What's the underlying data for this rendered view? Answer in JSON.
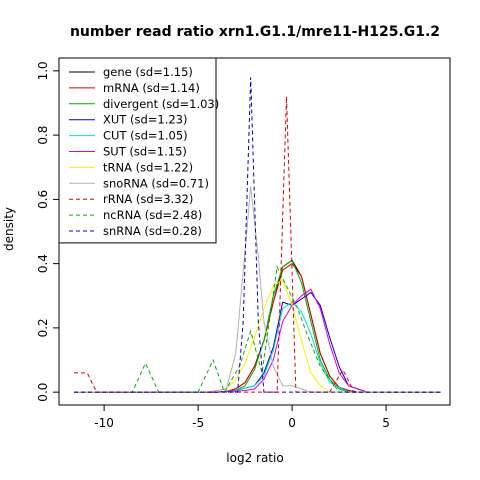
{
  "chart_data": {
    "type": "line",
    "title": "number read ratio xrn1.G1.1/mre11-H125.G1.2",
    "xlabel": "log2 ratio",
    "ylabel": "density",
    "xlim": [
      -12.4,
      8.4
    ],
    "ylim": [
      -0.04,
      1.04
    ],
    "x_ticks": [
      -10,
      -5,
      0,
      5
    ],
    "y_ticks": [
      0.0,
      0.2,
      0.4,
      0.6,
      0.8,
      1.0
    ],
    "x_tick_labels": [
      "-10",
      "-5",
      "0",
      "5"
    ],
    "y_tick_labels": [
      "0.0",
      "0.2",
      "0.4",
      "0.6",
      "0.8",
      "1.0"
    ],
    "legend_position": "top-left",
    "grid": false,
    "series": [
      {
        "name": "gene (sd=1.15)",
        "color": "#000000",
        "dash": "solid",
        "points": [
          [
            -11.6,
            0.0
          ],
          [
            -4.0,
            0.0
          ],
          [
            -3.5,
            0.002
          ],
          [
            -3.0,
            0.01
          ],
          [
            -2.5,
            0.03
          ],
          [
            -2.0,
            0.08
          ],
          [
            -1.5,
            0.16
          ],
          [
            -1.0,
            0.28
          ],
          [
            -0.5,
            0.39
          ],
          [
            0.0,
            0.41
          ],
          [
            0.5,
            0.36
          ],
          [
            1.0,
            0.24
          ],
          [
            1.5,
            0.12
          ],
          [
            2.0,
            0.05
          ],
          [
            2.5,
            0.015
          ],
          [
            3.0,
            0.005
          ],
          [
            3.5,
            0.0
          ],
          [
            7.9,
            0.0
          ]
        ]
      },
      {
        "name": "mRNA (sd=1.14)",
        "color": "#df0000",
        "dash": "solid",
        "points": [
          [
            -11.6,
            0.0
          ],
          [
            -4.0,
            0.0
          ],
          [
            -3.5,
            0.002
          ],
          [
            -3.0,
            0.01
          ],
          [
            -2.5,
            0.03
          ],
          [
            -2.0,
            0.08
          ],
          [
            -1.5,
            0.16
          ],
          [
            -1.0,
            0.28
          ],
          [
            -0.5,
            0.38
          ],
          [
            0.0,
            0.4
          ],
          [
            0.5,
            0.36
          ],
          [
            1.0,
            0.24
          ],
          [
            1.5,
            0.12
          ],
          [
            2.0,
            0.05
          ],
          [
            2.5,
            0.015
          ],
          [
            3.0,
            0.005
          ],
          [
            3.5,
            0.0
          ],
          [
            7.9,
            0.0
          ]
        ]
      },
      {
        "name": "divergent (sd=1.03)",
        "color": "#00b000",
        "dash": "solid",
        "points": [
          [
            -11.6,
            0.0
          ],
          [
            -4.0,
            0.0
          ],
          [
            -3.0,
            0.005
          ],
          [
            -2.5,
            0.02
          ],
          [
            -2.0,
            0.07
          ],
          [
            -1.5,
            0.16
          ],
          [
            -1.0,
            0.3
          ],
          [
            -0.5,
            0.39
          ],
          [
            0.0,
            0.41
          ],
          [
            0.5,
            0.34
          ],
          [
            1.0,
            0.22
          ],
          [
            1.5,
            0.1
          ],
          [
            2.0,
            0.04
          ],
          [
            2.5,
            0.01
          ],
          [
            3.0,
            0.0
          ],
          [
            7.9,
            0.0
          ]
        ]
      },
      {
        "name": "XUT (sd=1.23)",
        "color": "#0000cc",
        "dash": "solid",
        "points": [
          [
            -11.6,
            0.0
          ],
          [
            -4.0,
            0.0
          ],
          [
            -3.0,
            0.005
          ],
          [
            -2.0,
            0.02
          ],
          [
            -1.5,
            0.06
          ],
          [
            -1.0,
            0.14
          ],
          [
            -0.5,
            0.28
          ],
          [
            0.0,
            0.27
          ],
          [
            0.5,
            0.29
          ],
          [
            1.0,
            0.31
          ],
          [
            1.5,
            0.27
          ],
          [
            2.0,
            0.17
          ],
          [
            2.5,
            0.08
          ],
          [
            3.0,
            0.02
          ],
          [
            4.0,
            0.0
          ],
          [
            7.9,
            0.0
          ]
        ]
      },
      {
        "name": "CUT (sd=1.05)",
        "color": "#00dddd",
        "dash": "solid",
        "points": [
          [
            -11.6,
            0.0
          ],
          [
            -4.0,
            0.0
          ],
          [
            -3.0,
            0.005
          ],
          [
            -2.0,
            0.02
          ],
          [
            -1.5,
            0.05
          ],
          [
            -1.0,
            0.13
          ],
          [
            -0.5,
            0.26
          ],
          [
            0.0,
            0.28
          ],
          [
            0.5,
            0.25
          ],
          [
            1.0,
            0.18
          ],
          [
            1.5,
            0.09
          ],
          [
            2.0,
            0.03
          ],
          [
            3.0,
            0.0
          ],
          [
            7.9,
            0.0
          ]
        ]
      },
      {
        "name": "SUT (sd=1.15)",
        "color": "#dd00dd",
        "dash": "solid",
        "points": [
          [
            -11.6,
            0.0
          ],
          [
            -4.0,
            0.0
          ],
          [
            -2.5,
            0.005
          ],
          [
            -2.0,
            0.01
          ],
          [
            -1.5,
            0.04
          ],
          [
            -1.0,
            0.1
          ],
          [
            -0.5,
            0.22
          ],
          [
            0.0,
            0.27
          ],
          [
            0.5,
            0.3
          ],
          [
            1.0,
            0.32
          ],
          [
            1.5,
            0.26
          ],
          [
            2.0,
            0.15
          ],
          [
            2.5,
            0.06
          ],
          [
            3.0,
            0.02
          ],
          [
            4.0,
            0.0
          ],
          [
            7.9,
            0.0
          ]
        ]
      },
      {
        "name": "tRNA (sd=1.22)",
        "color": "#ffee00",
        "dash": "solid",
        "points": [
          [
            -11.6,
            0.0
          ],
          [
            -4.5,
            0.0
          ],
          [
            -3.5,
            0.01
          ],
          [
            -3.0,
            0.04
          ],
          [
            -2.5,
            0.09
          ],
          [
            -2.0,
            0.17
          ],
          [
            -1.5,
            0.26
          ],
          [
            -1.0,
            0.33
          ],
          [
            -0.5,
            0.35
          ],
          [
            0.0,
            0.27
          ],
          [
            0.5,
            0.16
          ],
          [
            1.0,
            0.06
          ],
          [
            1.5,
            0.02
          ],
          [
            2.0,
            0.0
          ],
          [
            7.9,
            0.0
          ]
        ]
      },
      {
        "name": "snoRNA (sd=0.71)",
        "color": "#b3b3b3",
        "dash": "solid",
        "points": [
          [
            -11.6,
            0.0
          ],
          [
            -4.5,
            0.0
          ],
          [
            -3.5,
            0.01
          ],
          [
            -3.0,
            0.12
          ],
          [
            -2.5,
            0.44
          ],
          [
            -2.2,
            0.64
          ],
          [
            -1.8,
            0.42
          ],
          [
            -1.5,
            0.22
          ],
          [
            -1.0,
            0.08
          ],
          [
            -0.5,
            0.02
          ],
          [
            0.0,
            0.02
          ],
          [
            0.5,
            0.01
          ],
          [
            1.0,
            0.0
          ],
          [
            7.9,
            0.0
          ]
        ]
      },
      {
        "name": "rRNA (sd=3.32)",
        "color": "#df0000",
        "dash": "dashed",
        "points": [
          [
            -11.6,
            0.06
          ],
          [
            -10.9,
            0.06
          ],
          [
            -10.4,
            0.0
          ],
          [
            -1.5,
            0.0
          ],
          [
            -0.8,
            0.0
          ],
          [
            -0.3,
            0.92
          ],
          [
            0.2,
            0.0
          ],
          [
            2.0,
            0.0
          ],
          [
            2.7,
            0.07
          ],
          [
            3.3,
            0.0
          ],
          [
            7.9,
            0.0
          ]
        ]
      },
      {
        "name": "ncRNA (sd=2.48)",
        "color": "#00b000",
        "dash": "dashed",
        "points": [
          [
            -11.6,
            0.0
          ],
          [
            -8.5,
            0.0
          ],
          [
            -7.8,
            0.09
          ],
          [
            -7.1,
            0.0
          ],
          [
            -5.0,
            0.0
          ],
          [
            -4.2,
            0.1
          ],
          [
            -3.6,
            0.0
          ],
          [
            -2.8,
            0.08
          ],
          [
            -2.2,
            0.19
          ],
          [
            -1.6,
            0.06
          ],
          [
            -0.8,
            0.39
          ],
          [
            -0.3,
            0.33
          ],
          [
            0.3,
            0.26
          ],
          [
            0.8,
            0.18
          ],
          [
            1.5,
            0.08
          ],
          [
            2.5,
            0.0
          ],
          [
            7.9,
            0.0
          ]
        ]
      },
      {
        "name": "snRNA (sd=0.28)",
        "color": "#0000cc",
        "dash": "dashed",
        "points": [
          [
            -11.6,
            0.0
          ],
          [
            -2.9,
            0.0
          ],
          [
            -2.6,
            0.22
          ],
          [
            -2.2,
            0.98
          ],
          [
            -1.8,
            0.22
          ],
          [
            -1.5,
            0.0
          ],
          [
            7.9,
            0.0
          ]
        ]
      }
    ]
  }
}
